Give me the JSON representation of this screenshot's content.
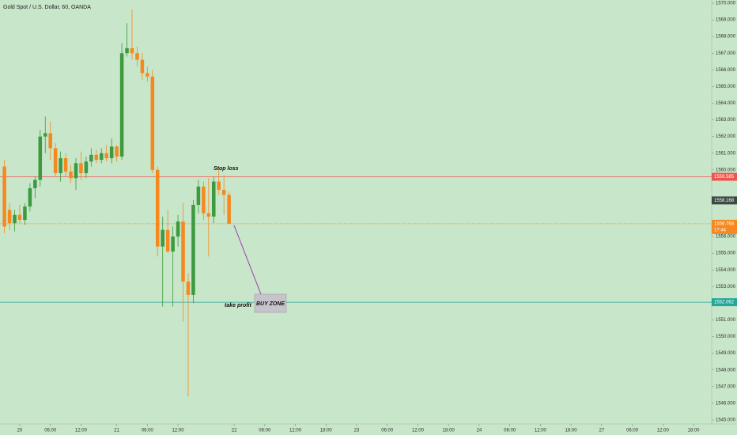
{
  "chart_data": {
    "type": "candlestick",
    "title": "Gold Spot / U.S. Dollar, 60, OANDA",
    "x": [
      -3,
      -2,
      -1,
      0,
      1,
      2,
      3,
      4,
      5,
      6,
      7,
      8,
      9,
      10,
      11,
      12,
      13,
      14,
      15,
      16,
      17,
      18,
      19,
      20,
      21,
      22,
      23,
      24,
      25,
      26,
      27,
      28,
      29,
      30,
      31,
      32,
      33,
      34,
      35,
      36,
      37,
      38,
      39,
      40,
      41
    ],
    "open": [
      1560.2,
      1557.6,
      1556.8,
      1557.3,
      1557.0,
      1557.8,
      1558.9,
      1559.4,
      1562.0,
      1562.2,
      1561.3,
      1559.8,
      1560.7,
      1559.9,
      1559.5,
      1560.4,
      1559.8,
      1560.5,
      1560.9,
      1560.6,
      1561.0,
      1560.7,
      1561.4,
      1560.8,
      1567.0,
      1567.3,
      1567.0,
      1566.6,
      1565.8,
      1565.6,
      1560.0,
      1555.4,
      1556.4,
      1555.1,
      1556.0,
      1556.9,
      1553.3,
      1552.5,
      1557.9,
      1559.0,
      1557.4,
      1557.2,
      1559.3,
      1558.8,
      1558.5
    ],
    "high": [
      1560.6,
      1558.0,
      1557.6,
      1557.9,
      1558.0,
      1559.2,
      1559.6,
      1562.4,
      1563.2,
      1562.9,
      1561.6,
      1561.1,
      1561.0,
      1560.3,
      1560.7,
      1561.1,
      1560.8,
      1561.3,
      1561.2,
      1561.3,
      1561.5,
      1561.9,
      1561.5,
      1567.6,
      1568.8,
      1569.6,
      1567.4,
      1567.0,
      1566.2,
      1566.0,
      1560.2,
      1557.2,
      1557.6,
      1556.6,
      1557.3,
      1558.0,
      1553.8,
      1558.2,
      1559.4,
      1559.3,
      1559.5,
      1559.6,
      1560.1,
      1559.7,
      1558.7
    ],
    "low": [
      1556.2,
      1556.4,
      1556.3,
      1556.8,
      1556.7,
      1557.5,
      1558.3,
      1559.0,
      1561.0,
      1560.6,
      1559.6,
      1559.3,
      1559.6,
      1559.2,
      1558.8,
      1559.4,
      1559.5,
      1560.2,
      1560.4,
      1560.4,
      1560.5,
      1560.4,
      1560.5,
      1560.6,
      1566.8,
      1566.6,
      1566.2,
      1565.4,
      1565.3,
      1559.8,
      1554.8,
      1551.8,
      1555.0,
      1551.8,
      1555.4,
      1550.9,
      1546.4,
      1552.0,
      1557.4,
      1557.0,
      1554.8,
      1556.8,
      1558.5,
      1557.3,
      1557.0
    ],
    "close": [
      1556.6,
      1556.8,
      1557.3,
      1557.0,
      1557.8,
      1558.9,
      1559.4,
      1562.0,
      1562.2,
      1561.3,
      1559.8,
      1560.7,
      1559.9,
      1559.5,
      1560.4,
      1559.8,
      1560.5,
      1560.9,
      1560.6,
      1561.0,
      1560.7,
      1561.4,
      1560.8,
      1567.0,
      1567.3,
      1567.0,
      1566.6,
      1565.8,
      1565.6,
      1560.0,
      1555.4,
      1556.4,
      1555.1,
      1556.0,
      1556.9,
      1553.3,
      1552.5,
      1557.9,
      1559.0,
      1557.4,
      1557.2,
      1559.3,
      1558.8,
      1558.5,
      1556.768
    ],
    "up_color": "#3d9a3f",
    "down_color": "#f5891f",
    "xlim": [
      -3.87,
      135.56
    ],
    "xticks": [
      {
        "value": 0,
        "label": "20"
      },
      {
        "value": 6,
        "label": "06:00"
      },
      {
        "value": 12,
        "label": "12:00"
      },
      {
        "value": 19,
        "label": "21"
      },
      {
        "value": 25,
        "label": "06:00"
      },
      {
        "value": 31,
        "label": "12:00"
      },
      {
        "value": 42,
        "label": "22"
      },
      {
        "value": 48,
        "label": "06:00"
      },
      {
        "value": 54,
        "label": "12:00"
      },
      {
        "value": 60,
        "label": "18:00"
      },
      {
        "value": 66,
        "label": "23"
      },
      {
        "value": 72,
        "label": "06:00"
      },
      {
        "value": 78,
        "label": "12:00"
      },
      {
        "value": 84,
        "label": "18:00"
      },
      {
        "value": 90,
        "label": "24"
      },
      {
        "value": 96,
        "label": "06:00"
      },
      {
        "value": 102,
        "label": "12:00"
      },
      {
        "value": 108,
        "label": "18:00"
      },
      {
        "value": 114,
        "label": "27"
      },
      {
        "value": 120,
        "label": "06:00"
      },
      {
        "value": 126,
        "label": "12:00"
      },
      {
        "value": 132,
        "label": "18:00"
      }
    ],
    "ylim": [
      1544.76,
      1570.19
    ],
    "yticks": [
      {
        "value": 1545,
        "label": "1545.000"
      },
      {
        "value": 1546,
        "label": "1546.000"
      },
      {
        "value": 1547,
        "label": "1547.000"
      },
      {
        "value": 1548,
        "label": "1548.000"
      },
      {
        "value": 1549,
        "label": "1549.000"
      },
      {
        "value": 1550,
        "label": "1550.000"
      },
      {
        "value": 1551,
        "label": "1551.000"
      },
      {
        "value": 1553,
        "label": "1553.000"
      },
      {
        "value": 1554,
        "label": "1554.000"
      },
      {
        "value": 1555,
        "label": "1555.000"
      },
      {
        "value": 1556,
        "label": "1556.000"
      },
      {
        "value": 1560,
        "label": "1560.000"
      },
      {
        "value": 1561,
        "label": "1561.000"
      },
      {
        "value": 1562,
        "label": "1562.000"
      },
      {
        "value": 1563,
        "label": "1563.000"
      },
      {
        "value": 1564,
        "label": "1564.000"
      },
      {
        "value": 1565,
        "label": "1565.000"
      },
      {
        "value": 1566,
        "label": "1566.000"
      },
      {
        "value": 1567,
        "label": "1567.000"
      },
      {
        "value": 1568,
        "label": "1568.000"
      },
      {
        "value": 1569,
        "label": "1569.000"
      },
      {
        "value": 1570,
        "label": "1570.000"
      }
    ],
    "levels": [
      {
        "value": 1559.585,
        "color": "#ef5350"
      },
      {
        "value": 1552.062,
        "color": "#26a69a"
      }
    ],
    "last_price": {
      "value": 1558.168,
      "color": "#3c4a44"
    },
    "current_price": {
      "value": 1556.768,
      "countdown": "17:44",
      "color": "#f5891f"
    },
    "annotations": {
      "stop_loss": "Stop loss",
      "take_profit": "take profit",
      "buy_zone": "BUY ZONE"
    }
  }
}
